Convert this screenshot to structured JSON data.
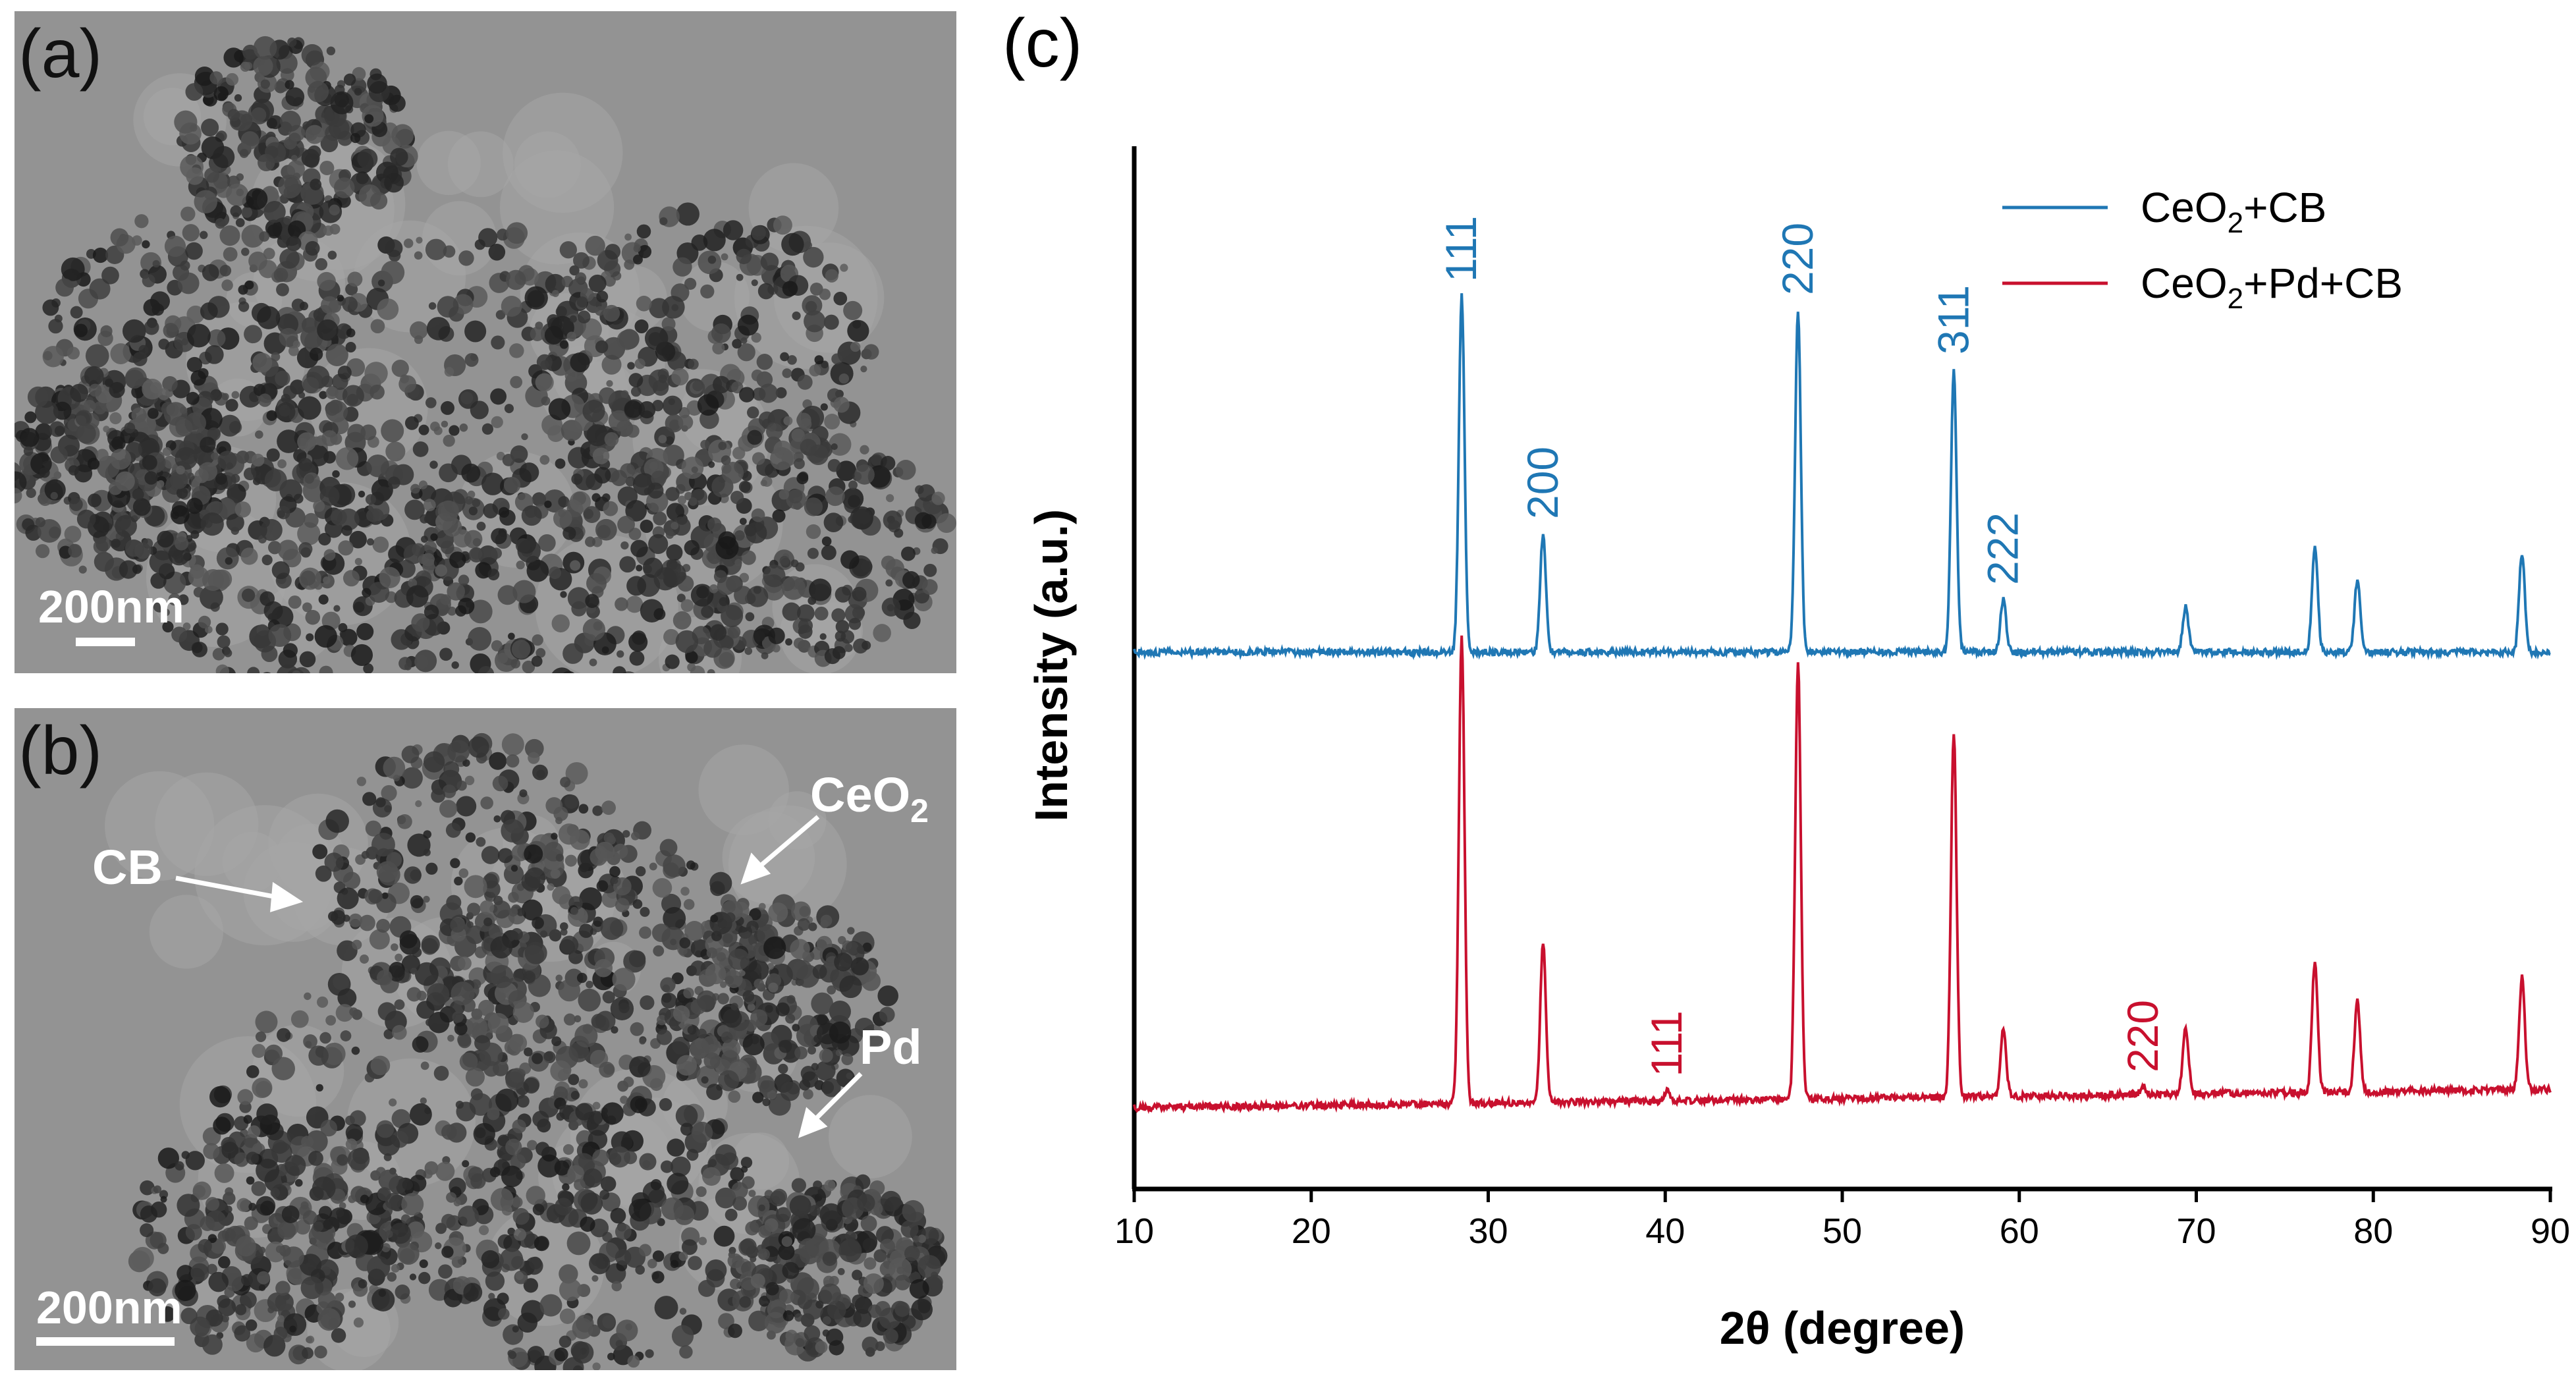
{
  "panels": {
    "a": {
      "label": "(a)",
      "scale_bar": "200nm"
    },
    "b": {
      "label": "(b)",
      "scale_bar": "200nm",
      "annotations": {
        "cb": "CB",
        "ceo2_base": "CeO",
        "ceo2_sub": "2",
        "pd": "Pd"
      }
    },
    "c": {
      "label": "(c)"
    }
  },
  "chart_data": {
    "type": "line",
    "xlabel": "2θ (degree)",
    "ylabel": "Intensity (a.u.)",
    "xlim": [
      10,
      90
    ],
    "xticks": [
      "10",
      "20",
      "30",
      "40",
      "50",
      "60",
      "70",
      "80",
      "90"
    ],
    "yticks_shown": false,
    "legend_position": "top-right",
    "series": [
      {
        "name": "CeO2+CB",
        "legend_parts": [
          "CeO",
          "2",
          "+CB"
        ],
        "color": "#1f77b4",
        "baseline": 0.0,
        "peaks": [
          {
            "x": 28.5,
            "height": 0.54
          },
          {
            "x": 33.1,
            "height": 0.18
          },
          {
            "x": 47.5,
            "height": 0.52
          },
          {
            "x": 56.3,
            "height": 0.43
          },
          {
            "x": 59.1,
            "height": 0.08
          },
          {
            "x": 69.4,
            "height": 0.07
          },
          {
            "x": 76.7,
            "height": 0.16
          },
          {
            "x": 79.1,
            "height": 0.11
          },
          {
            "x": 88.4,
            "height": 0.15
          }
        ],
        "peak_labels": [
          {
            "x": 28.5,
            "text": "111"
          },
          {
            "x": 33.1,
            "text": "200"
          },
          {
            "x": 47.5,
            "text": "220"
          },
          {
            "x": 56.3,
            "text": "311"
          },
          {
            "x": 59.1,
            "text": "222"
          }
        ]
      },
      {
        "name": "CeO2+Pd+CB",
        "legend_parts": [
          "CeO",
          "2",
          "+Pd+CB"
        ],
        "color": "#c8102e",
        "baseline": 0.0,
        "peaks": [
          {
            "x": 28.5,
            "height": 0.71
          },
          {
            "x": 33.1,
            "height": 0.24
          },
          {
            "x": 40.1,
            "height": 0.015
          },
          {
            "x": 47.5,
            "height": 0.66
          },
          {
            "x": 56.3,
            "height": 0.55
          },
          {
            "x": 59.1,
            "height": 0.1
          },
          {
            "x": 67.0,
            "height": 0.012
          },
          {
            "x": 69.4,
            "height": 0.1
          },
          {
            "x": 76.7,
            "height": 0.2
          },
          {
            "x": 79.1,
            "height": 0.14
          },
          {
            "x": 88.4,
            "height": 0.17
          }
        ],
        "peak_labels": [
          {
            "x": 40.1,
            "text": "111"
          },
          {
            "x": 67.0,
            "text": "220"
          }
        ]
      }
    ]
  }
}
